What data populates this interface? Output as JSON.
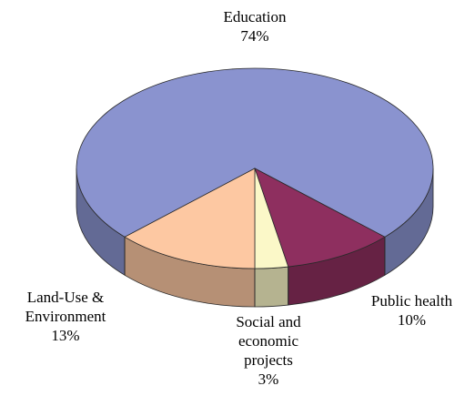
{
  "chart_data": {
    "type": "pie",
    "title": "",
    "categories": [
      "Education",
      "Public health",
      "Social and economic projects",
      "Land-Use & Environment"
    ],
    "values": [
      74,
      10,
      3,
      13
    ],
    "colors": {
      "Education": "#8a93cf",
      "Public health": "#8e2f5f",
      "Social and economic projects": "#fbf8c8",
      "Land-Use & Environment": "#fdc8a2"
    },
    "labels": [
      {
        "lines": [
          "Education"
        ],
        "value": "74%"
      },
      {
        "lines": [
          "Public health"
        ],
        "value": "10%"
      },
      {
        "lines": [
          "Social and",
          "economic",
          "projects"
        ],
        "value": "3%"
      },
      {
        "lines": [
          "Land-Use &",
          "Environment"
        ],
        "value": "13%"
      }
    ],
    "style": "3d-pie",
    "legend": "none"
  }
}
